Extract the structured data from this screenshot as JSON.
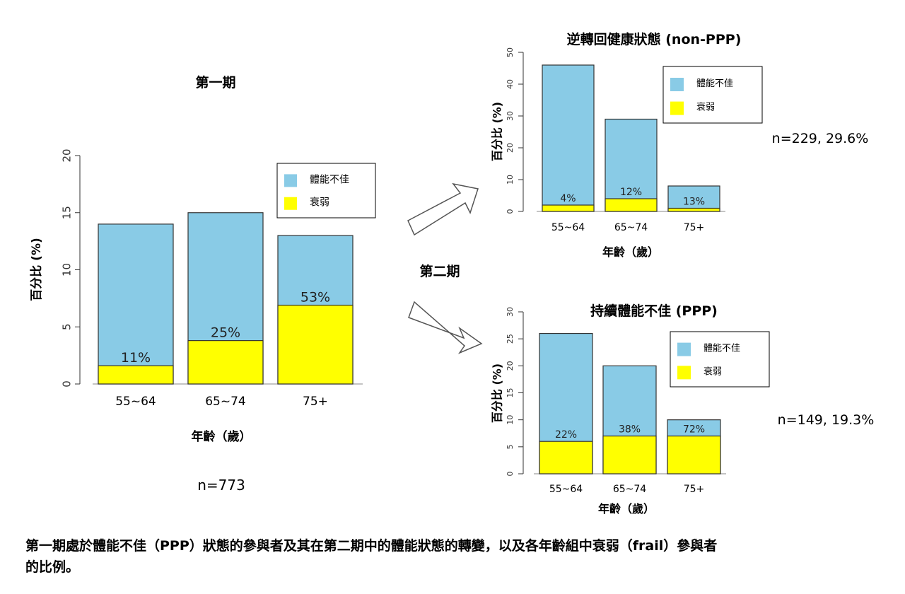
{
  "period_labels": {
    "period1": "第一期",
    "period2": "第二期"
  },
  "caption_lines": [
    "第一期處於體能不佳（PPP）狀態的參與者及其在第二期中的體能狀態的轉變，以及各年齡組中衰弱（frail）參與者",
    "的比例。"
  ],
  "colors": {
    "ppp": "#89cbe6",
    "frail": "#ffff00",
    "axis": "#333333",
    "border": "#333333"
  },
  "chart_data": [
    {
      "id": "main",
      "type": "bar",
      "stacked": true,
      "title": "",
      "xlabel": "年齡（歲）",
      "ylabel": "百分比 (%)",
      "ylim": [
        0,
        20
      ],
      "yticks": [
        0,
        5,
        10,
        15,
        20
      ],
      "categories": [
        "55~64",
        "65~74",
        "75+"
      ],
      "series": [
        {
          "name": "體能不佳",
          "values": [
            14,
            15,
            13
          ]
        },
        {
          "name": "衰弱",
          "values": [
            1.6,
            3.8,
            6.9
          ]
        }
      ],
      "data_labels": [
        "11%",
        "25%",
        "53%"
      ],
      "legend_position": "top-right",
      "note": "n=773"
    },
    {
      "id": "non_ppp",
      "type": "bar",
      "stacked": true,
      "title": "逆轉回健康狀態 (non-PPP)",
      "xlabel": "年齡（歲）",
      "ylabel": "百分比 (%)",
      "ylim": [
        0,
        50
      ],
      "yticks": [
        0,
        10,
        20,
        30,
        40,
        50
      ],
      "categories": [
        "55~64",
        "65~74",
        "75+"
      ],
      "series": [
        {
          "name": "體能不佳",
          "values": [
            46,
            29,
            8
          ]
        },
        {
          "name": "衰弱",
          "values": [
            2,
            4,
            1
          ]
        }
      ],
      "data_labels": [
        "4%",
        "12%",
        "13%"
      ],
      "legend_position": "top-right",
      "note": "n=229, 29.6%"
    },
    {
      "id": "ppp",
      "type": "bar",
      "stacked": true,
      "title": "持續體能不佳 (PPP)",
      "xlabel": "年齡（歲）",
      "ylabel": "百分比 (%)",
      "ylim": [
        0,
        30
      ],
      "yticks": [
        0,
        5,
        10,
        15,
        20,
        25,
        30
      ],
      "categories": [
        "55~64",
        "65~74",
        "75+"
      ],
      "series": [
        {
          "name": "體能不佳",
          "values": [
            26,
            20,
            10
          ]
        },
        {
          "name": "衰弱",
          "values": [
            6,
            7,
            7
          ]
        }
      ],
      "data_labels": [
        "22%",
        "38%",
        "72%"
      ],
      "legend_position": "top-right",
      "note": "n=149, 19.3%"
    }
  ]
}
